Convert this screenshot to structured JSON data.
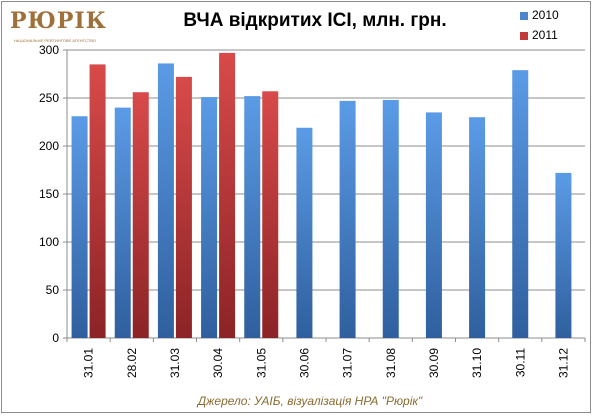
{
  "logo": {
    "text": "РЮРІК",
    "subtitle": "НАЦІОНАЛЬНЕ РЕЙТИНГОВЕ АГЕНТСТВО"
  },
  "source_note": "Джерело: УАІБ, візуалізація НРА \"Рюрік\"",
  "chart_data": {
    "type": "bar",
    "title": "ВЧА відкритих ІСІ, млн. грн.",
    "xlabel": "",
    "ylabel": "",
    "ylim": [
      0,
      300
    ],
    "yticks": [
      0,
      50,
      100,
      150,
      200,
      250,
      300
    ],
    "grid": true,
    "legend_position": "top-right",
    "categories": [
      "31.01",
      "28.02",
      "31.03",
      "30.04",
      "31.05",
      "30.06",
      "31.07",
      "31.08",
      "30.09",
      "31.10",
      "30.11",
      "31.12"
    ],
    "series": [
      {
        "name": "2010",
        "color": "#4a86d0",
        "values": [
          231,
          240,
          286,
          251,
          252,
          219,
          247,
          248,
          235,
          230,
          279,
          172
        ]
      },
      {
        "name": "2011",
        "color": "#c0393b",
        "values": [
          285,
          256,
          272,
          297,
          257,
          null,
          null,
          null,
          null,
          null,
          null,
          null
        ]
      }
    ]
  }
}
